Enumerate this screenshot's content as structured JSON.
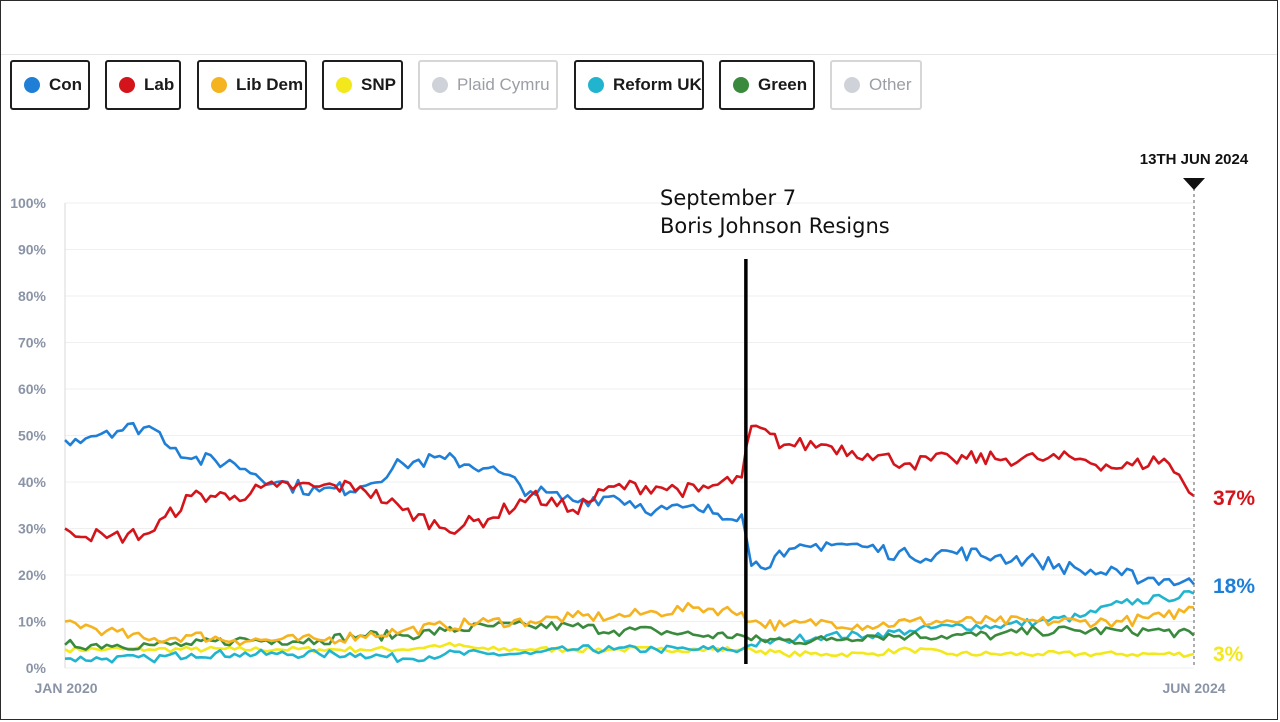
{
  "legend": [
    {
      "label": "Con",
      "color": "#1f7fd6",
      "active": true
    },
    {
      "label": "Lab",
      "color": "#d4141b",
      "active": true
    },
    {
      "label": "Lib Dem",
      "color": "#f5b31f",
      "active": true
    },
    {
      "label": "SNP",
      "color": "#f2e81c",
      "active": true
    },
    {
      "label": "Plaid Cymru",
      "color": "#cfd3d9",
      "active": false
    },
    {
      "label": "Reform UK",
      "color": "#21b4cf",
      "active": true
    },
    {
      "label": "Green",
      "color": "#3a8a3d",
      "active": true
    },
    {
      "label": "Other",
      "color": "#cfd3d9",
      "active": false
    }
  ],
  "annotation": {
    "line1": "September 7",
    "line2": "Boris Johnson Resigns",
    "date": "2022-09-07"
  },
  "marker_label": "13TH JUN 2024",
  "chart_data": {
    "type": "line",
    "xlim": [
      "2020-01-01",
      "2024-06-13"
    ],
    "x_tick_labels": [
      "JAN 2020",
      "JUN 2024"
    ],
    "ylim": [
      0,
      100
    ],
    "y_tick_labels": [
      "100%",
      "90%",
      "80%",
      "70%",
      "60%",
      "50%",
      "40%",
      "30%",
      "20%",
      "10%",
      "0%"
    ],
    "grid": true,
    "end_labels": [
      {
        "text": "37%",
        "color": "#d4141b",
        "value": 37
      },
      {
        "text": "18%",
        "color": "#1f7fd6",
        "value": 18
      },
      {
        "text": "3%",
        "color": "#f2e81c",
        "value": 3
      }
    ],
    "x": [
      "2020-01-01",
      "2020-03-01",
      "2020-05-01",
      "2020-07-01",
      "2020-09-01",
      "2020-11-01",
      "2021-01-01",
      "2021-03-01",
      "2021-05-01",
      "2021-07-01",
      "2021-09-01",
      "2021-11-01",
      "2022-01-01",
      "2022-03-01",
      "2022-05-01",
      "2022-07-01",
      "2022-09-01",
      "2022-09-15",
      "2022-11-01",
      "2023-01-01",
      "2023-03-01",
      "2023-05-01",
      "2023-07-01",
      "2023-09-01",
      "2023-11-01",
      "2024-01-01",
      "2024-03-01",
      "2024-05-01",
      "2024-06-13"
    ],
    "series": [
      {
        "name": "Con",
        "color": "#1f7fd6",
        "values": [
          49,
          51,
          52,
          45,
          44,
          40,
          38,
          39,
          44,
          45,
          43,
          38,
          36,
          37,
          34,
          34,
          33,
          22,
          24,
          27,
          26,
          24,
          25,
          24,
          23,
          21,
          20,
          19,
          18
        ]
      },
      {
        "name": "Lab",
        "color": "#d4141b",
        "values": [
          30,
          28,
          29,
          37,
          37,
          39,
          39,
          39,
          34,
          30,
          32,
          37,
          34,
          39,
          39,
          38,
          41,
          52,
          48,
          48,
          46,
          44,
          45,
          45,
          45,
          45,
          43,
          45,
          37
        ]
      },
      {
        "name": "Lib Dem",
        "color": "#f5b31f",
        "values": [
          10,
          8,
          6,
          7,
          6,
          6,
          6,
          7,
          8,
          9,
          10,
          10,
          11,
          11,
          12,
          13,
          12,
          10,
          9,
          10,
          9,
          10,
          10,
          10,
          10,
          10,
          10,
          11,
          13
        ]
      },
      {
        "name": "SNP",
        "color": "#f2e81c",
        "values": [
          4,
          4,
          4,
          4,
          4,
          4,
          4,
          4,
          4,
          5,
          4,
          4,
          4,
          4,
          4,
          4,
          4,
          4,
          3,
          3,
          3,
          4,
          3,
          3,
          3,
          3,
          3,
          3,
          3
        ]
      },
      {
        "name": "Reform UK",
        "color": "#21b4cf",
        "values": [
          2,
          2,
          2,
          3,
          3,
          3,
          3,
          3,
          2,
          3,
          3,
          3,
          4,
          4,
          4,
          4,
          4,
          5,
          6,
          7,
          7,
          8,
          9,
          9,
          10,
          11,
          14,
          15,
          16
        ]
      },
      {
        "name": "Green",
        "color": "#3a8a3d",
        "values": [
          5,
          5,
          5,
          5,
          6,
          6,
          6,
          7,
          7,
          8,
          9,
          9,
          9,
          8,
          8,
          7,
          7,
          6,
          6,
          6,
          7,
          7,
          7,
          7,
          8,
          8,
          8,
          8,
          7
        ]
      }
    ]
  }
}
